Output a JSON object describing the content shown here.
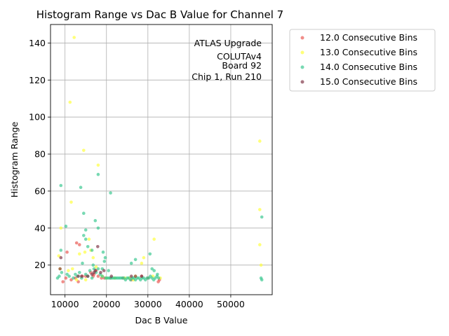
{
  "chart_data": {
    "type": "scatter",
    "title": "Histogram Range vs Dac B Value for Channel 7",
    "xlabel": "Dac B Value",
    "ylabel": "Histogram Range",
    "xlim": [
      6500,
      60000
    ],
    "ylim": [
      4,
      150
    ],
    "xticks": [
      10000,
      20000,
      30000,
      40000,
      50000
    ],
    "xtick_labels": [
      "10000",
      "20000",
      "30000",
      "40000",
      "50000"
    ],
    "yticks": [
      20,
      40,
      60,
      80,
      100,
      120,
      140
    ],
    "ytick_labels": [
      "20",
      "40",
      "60",
      "80",
      "100",
      "120",
      "140"
    ],
    "grid": true,
    "legend_placement": "outside upper-right",
    "annotation": [
      "ATLAS Upgrade",
      "COLUTAv4",
      "Board 92",
      "Chip 1, Run 210"
    ],
    "series": [
      {
        "name": "12.0 Consecutive Bins",
        "color": "#e8504a",
        "points": [
          [
            9500,
            11
          ],
          [
            10500,
            27
          ],
          [
            12800,
            32
          ],
          [
            13200,
            11
          ],
          [
            13500,
            31
          ],
          [
            14200,
            14
          ],
          [
            15000,
            14
          ],
          [
            16200,
            16
          ],
          [
            17000,
            15
          ],
          [
            17500,
            17
          ],
          [
            18000,
            14
          ],
          [
            18800,
            13
          ],
          [
            19500,
            13
          ],
          [
            21000,
            13
          ],
          [
            24000,
            13
          ],
          [
            26000,
            12
          ],
          [
            28500,
            14
          ],
          [
            30000,
            13
          ],
          [
            32500,
            11
          ],
          [
            32800,
            12
          ],
          [
            10200,
            13
          ],
          [
            11500,
            12
          ],
          [
            12500,
            13
          ],
          [
            16800,
            14
          ]
        ]
      },
      {
        "name": "13.0 Consecutive Bins",
        "color": "#ffff33",
        "points": [
          [
            12200,
            143
          ],
          [
            11200,
            108
          ],
          [
            14500,
            82
          ],
          [
            18000,
            74
          ],
          [
            57000,
            87
          ],
          [
            57000,
            50
          ],
          [
            57000,
            31
          ],
          [
            57300,
            20
          ],
          [
            9000,
            40
          ],
          [
            11500,
            54
          ],
          [
            8500,
            25
          ],
          [
            8800,
            18
          ],
          [
            10800,
            17
          ],
          [
            11800,
            18
          ],
          [
            13500,
            26
          ],
          [
            14800,
            27
          ],
          [
            15800,
            34
          ],
          [
            16200,
            28
          ],
          [
            16800,
            24
          ],
          [
            17500,
            19
          ],
          [
            19000,
            14
          ],
          [
            20000,
            13
          ],
          [
            22000,
            13
          ],
          [
            24500,
            13
          ],
          [
            25500,
            13
          ],
          [
            27000,
            14
          ],
          [
            28500,
            21
          ],
          [
            29000,
            24
          ],
          [
            31500,
            34
          ],
          [
            31200,
            14
          ],
          [
            33000,
            13
          ],
          [
            15000,
            12
          ],
          [
            12800,
            12
          ],
          [
            26500,
            12
          ]
        ]
      },
      {
        "name": "14.0 Consecutive Bins",
        "color": "#2fc48a",
        "points": [
          [
            9000,
            63
          ],
          [
            13800,
            62
          ],
          [
            18000,
            69
          ],
          [
            21000,
            59
          ],
          [
            14500,
            48
          ],
          [
            17300,
            44
          ],
          [
            18000,
            40
          ],
          [
            10200,
            41
          ],
          [
            15000,
            39
          ],
          [
            14500,
            36
          ],
          [
            15500,
            30
          ],
          [
            16500,
            28
          ],
          [
            9000,
            28
          ],
          [
            15000,
            34
          ],
          [
            19200,
            27
          ],
          [
            30500,
            26
          ],
          [
            19700,
            24
          ],
          [
            19500,
            22
          ],
          [
            26000,
            21
          ],
          [
            27000,
            23
          ],
          [
            14200,
            21
          ],
          [
            16800,
            20
          ],
          [
            18000,
            18
          ],
          [
            19000,
            18
          ],
          [
            20500,
            17
          ],
          [
            31000,
            18
          ],
          [
            31500,
            17
          ],
          [
            32300,
            15
          ],
          [
            57500,
            46
          ],
          [
            57300,
            13
          ],
          [
            57500,
            12
          ],
          [
            8200,
            13
          ],
          [
            8600,
            14
          ],
          [
            9200,
            16
          ],
          [
            10500,
            15
          ],
          [
            11000,
            14
          ],
          [
            12000,
            13
          ],
          [
            12500,
            15
          ],
          [
            13000,
            14
          ],
          [
            13500,
            16
          ],
          [
            14000,
            13
          ],
          [
            15000,
            15
          ],
          [
            15500,
            14
          ],
          [
            16000,
            17
          ],
          [
            16500,
            13
          ],
          [
            17000,
            18
          ],
          [
            17500,
            16
          ],
          [
            18500,
            15
          ],
          [
            19000,
            14
          ],
          [
            19800,
            13
          ],
          [
            20200,
            13
          ],
          [
            20600,
            13
          ],
          [
            21000,
            13
          ],
          [
            21400,
            13
          ],
          [
            21800,
            13
          ],
          [
            22200,
            13
          ],
          [
            22600,
            13
          ],
          [
            23000,
            13
          ],
          [
            23400,
            13
          ],
          [
            23800,
            13
          ],
          [
            24200,
            13
          ],
          [
            24600,
            12
          ],
          [
            25000,
            13
          ],
          [
            25400,
            13
          ],
          [
            25800,
            12
          ],
          [
            26200,
            13
          ],
          [
            26600,
            13
          ],
          [
            27000,
            12
          ],
          [
            27400,
            13
          ],
          [
            27800,
            13
          ],
          [
            28200,
            12
          ],
          [
            28600,
            13
          ],
          [
            29000,
            13
          ],
          [
            29400,
            12
          ],
          [
            29800,
            13
          ],
          [
            30200,
            13
          ],
          [
            30600,
            14
          ],
          [
            31000,
            13
          ],
          [
            31400,
            12
          ],
          [
            31800,
            13
          ],
          [
            32200,
            14
          ],
          [
            32600,
            13
          ]
        ]
      },
      {
        "name": "15.0 Consecutive Bins",
        "color": "#7a2b3e",
        "points": [
          [
            9000,
            24
          ],
          [
            8800,
            18
          ],
          [
            17900,
            30
          ],
          [
            16500,
            15
          ],
          [
            17000,
            16
          ],
          [
            17300,
            17
          ],
          [
            15500,
            14
          ],
          [
            14000,
            14
          ],
          [
            18600,
            16
          ],
          [
            19400,
            17
          ],
          [
            21200,
            14
          ],
          [
            26000,
            14
          ],
          [
            27000,
            14
          ],
          [
            28500,
            14
          ],
          [
            13200,
            14
          ]
        ]
      }
    ]
  }
}
